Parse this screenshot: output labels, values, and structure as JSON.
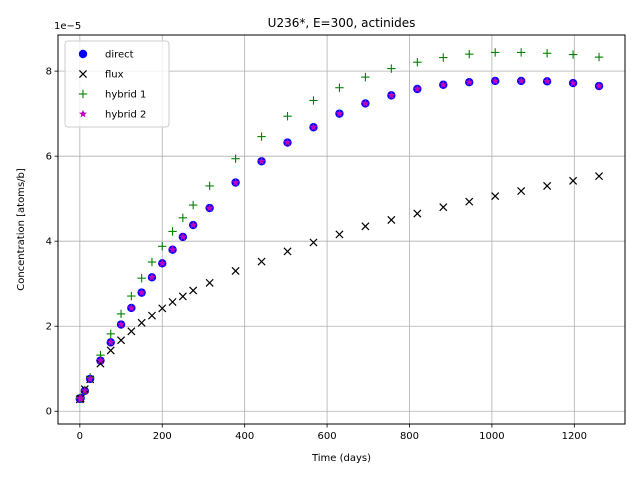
{
  "chart_data": {
    "type": "scatter",
    "title": "U236*, E=300, actinides",
    "xlabel": "Time (days)",
    "ylabel": "Concentration [atoms/b]",
    "y_offset_label": "1e−5",
    "y_scale_exponent": -5,
    "xlim": [
      -53,
      1323
    ],
    "ylim": [
      -0.3,
      8.85
    ],
    "x_ticks": [
      0,
      200,
      400,
      600,
      800,
      1000,
      1200
    ],
    "y_ticks": [
      0,
      2,
      4,
      6,
      8
    ],
    "grid": true,
    "legend_position": "top-left",
    "series": [
      {
        "name": "direct",
        "marker": "circle",
        "color": "#0000ff",
        "x": [
          0,
          2,
          12,
          25,
          50,
          75,
          100,
          125,
          150,
          175,
          200,
          225,
          250,
          275,
          315,
          378,
          441,
          504,
          567,
          630,
          693,
          756,
          819,
          882,
          945,
          1008,
          1071,
          1134,
          1197,
          1260
        ],
        "y": [
          0.29,
          0.31,
          0.48,
          0.76,
          1.19,
          1.62,
          2.04,
          2.43,
          2.79,
          3.15,
          3.48,
          3.8,
          4.1,
          4.38,
          4.78,
          5.38,
          5.88,
          6.32,
          6.68,
          7.0,
          7.24,
          7.43,
          7.58,
          7.68,
          7.74,
          7.77,
          7.77,
          7.76,
          7.72,
          7.65
        ]
      },
      {
        "name": "flux",
        "marker": "x",
        "color": "#000000",
        "x": [
          0,
          2,
          12,
          25,
          50,
          75,
          100,
          125,
          150,
          175,
          200,
          225,
          250,
          275,
          315,
          378,
          441,
          504,
          567,
          630,
          693,
          756,
          819,
          882,
          945,
          1008,
          1071,
          1134,
          1197,
          1260
        ],
        "y": [
          0.28,
          0.3,
          0.52,
          0.75,
          1.12,
          1.43,
          1.67,
          1.88,
          2.08,
          2.25,
          2.42,
          2.57,
          2.7,
          2.84,
          3.02,
          3.3,
          3.52,
          3.76,
          3.97,
          4.16,
          4.35,
          4.5,
          4.65,
          4.8,
          4.93,
          5.06,
          5.18,
          5.3,
          5.42,
          5.53
        ]
      },
      {
        "name": "hybrid 1",
        "marker": "plus",
        "color": "#008000",
        "x": [
          0,
          2,
          12,
          25,
          50,
          75,
          100,
          125,
          150,
          175,
          200,
          225,
          250,
          275,
          315,
          378,
          441,
          504,
          567,
          630,
          693,
          756,
          819,
          882,
          945,
          1008,
          1071,
          1134,
          1197,
          1260
        ],
        "y": [
          0.3,
          0.32,
          0.5,
          0.8,
          1.32,
          1.82,
          2.29,
          2.71,
          3.13,
          3.51,
          3.88,
          4.23,
          4.55,
          4.85,
          5.3,
          5.94,
          6.46,
          6.94,
          7.31,
          7.61,
          7.86,
          8.06,
          8.21,
          8.32,
          8.4,
          8.44,
          8.44,
          8.42,
          8.39,
          8.33
        ]
      },
      {
        "name": "hybrid 2",
        "marker": "star",
        "color": "#bf00bf",
        "x": [
          0,
          2,
          12,
          25,
          50,
          75,
          100,
          125,
          150,
          175,
          200,
          225,
          250,
          275,
          315,
          378,
          441,
          504,
          567,
          630,
          693,
          756,
          819,
          882,
          945,
          1008,
          1071,
          1134,
          1197,
          1260
        ],
        "y": [
          0.29,
          0.31,
          0.48,
          0.76,
          1.19,
          1.62,
          2.04,
          2.43,
          2.79,
          3.15,
          3.48,
          3.8,
          4.1,
          4.38,
          4.78,
          5.38,
          5.88,
          6.32,
          6.68,
          7.0,
          7.24,
          7.43,
          7.58,
          7.68,
          7.74,
          7.77,
          7.77,
          7.76,
          7.72,
          7.65
        ]
      }
    ]
  }
}
